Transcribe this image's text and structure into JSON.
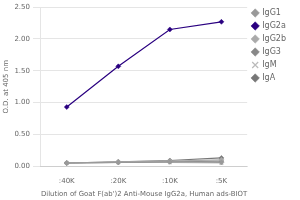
{
  "chart_data": {
    "type": "line",
    "xlabel": "Dilution of Goat F(ab')2 Anti-Mouse IgG2a, Human ads-BIOT",
    "ylabel": "O.D. at 405 nm",
    "categories": [
      ":40K",
      ":20K",
      ":10K",
      ":5K"
    ],
    "series": [
      {
        "name": "IgG1",
        "color": "#999999",
        "marker": "diamond",
        "values": [
          0.05,
          0.06,
          0.07,
          0.06
        ]
      },
      {
        "name": "IgG2a",
        "color": "#2a0080",
        "marker": "diamond",
        "values": [
          0.93,
          1.57,
          2.15,
          2.27
        ]
      },
      {
        "name": "IgG2b",
        "color": "#aaaaaa",
        "marker": "diamond",
        "values": [
          0.05,
          0.07,
          0.08,
          0.1
        ]
      },
      {
        "name": "IgG3",
        "color": "#888888",
        "marker": "diamond",
        "values": [
          0.05,
          0.06,
          0.07,
          0.08
        ]
      },
      {
        "name": "IgM",
        "color": "#bbbbbb",
        "marker": "cross",
        "values": [
          0.05,
          0.06,
          0.06,
          0.05
        ]
      },
      {
        "name": "IgA",
        "color": "#777777",
        "marker": "diamond",
        "values": [
          0.05,
          0.07,
          0.09,
          0.13
        ]
      }
    ],
    "ylim": [
      0.0,
      2.5
    ],
    "yticks": [
      {
        "value": 0,
        "label": "0.00"
      },
      {
        "value": 0.5,
        "label": "0.50"
      },
      {
        "value": 1,
        "label": "1.00"
      },
      {
        "value": 1.5,
        "label": "1.50"
      },
      {
        "value": 2,
        "label": "2.00"
      },
      {
        "value": 2.5,
        "label": "2.50"
      }
    ],
    "grid": "y",
    "legend": "right"
  }
}
